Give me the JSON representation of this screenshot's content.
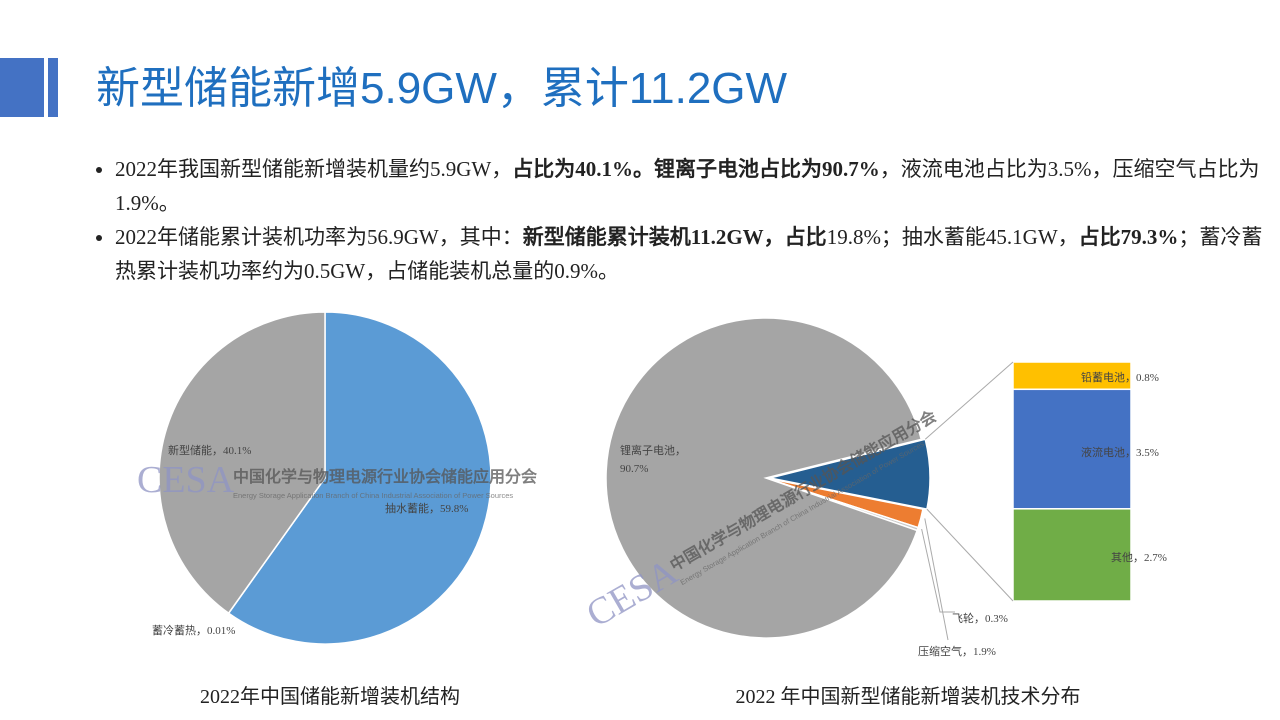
{
  "slide": {
    "title": "新型储能新增5.9GW，累计11.2GW",
    "bullets": [
      [
        {
          "text": "2022年我国新型储能新增装机量约5.9GW，",
          "bold": false
        },
        {
          "text": "占比为40.1%。锂离子电池占比为90.7%",
          "bold": true
        },
        {
          "text": "，液流电池占比为3.5%，压缩空气占比为1.9%。",
          "bold": false
        }
      ],
      [
        {
          "text": "2022年储能累计装机功率为56.9GW，其中：",
          "bold": false
        },
        {
          "text": "新型储能累计装机11.2GW，占比",
          "bold": true
        },
        {
          "text": "19.8%；抽水蓄能45.1GW，",
          "bold": false
        },
        {
          "text": "占比79.3%",
          "bold": true
        },
        {
          "text": "；蓄冷蓄热累计装机功率约为0.5GW，占储能装机总量的0.9%。",
          "bold": false
        }
      ]
    ],
    "watermark": {
      "logo": "CESA",
      "name": "中国化学与物理电源行业协会储能应用分会",
      "name_en": "Energy Storage Application Branch of China Industrial Association of Power Sources"
    }
  },
  "chart_data": [
    {
      "type": "pie",
      "title": "2022年中国储能新增装机结构",
      "values": [
        59.8,
        0.01,
        40.1
      ],
      "value_labels": [
        "抽水蓄能，59.8%",
        "蓄冷蓄热，0.01%",
        "新型储能，40.1%"
      ],
      "colors": [
        "#5b9bd5",
        "#ed7d31",
        "#a5a5a5"
      ]
    },
    {
      "type": "bar-of-pie",
      "title": "2022 年中国新型储能新增装机技术分布",
      "pie": {
        "values": [
          1.9,
          0.3,
          90.7
        ],
        "value_labels": [
          "压缩空气，1.9%",
          "飞轮，0.3%",
          "锂离子电池，90.7%"
        ],
        "colors": [
          "#ed7d31",
          "#c9c9c9",
          "#a5a5a5"
        ],
        "group_color": "#255e91"
      },
      "bar": {
        "values": [
          0.8,
          3.5,
          2.7
        ],
        "value_labels": [
          "铅蓄电池，0.8%",
          "液流电池，3.5%",
          "其他，2.7%"
        ],
        "colors": [
          "#ffc000",
          "#4472c4",
          "#70ad47"
        ]
      }
    }
  ]
}
